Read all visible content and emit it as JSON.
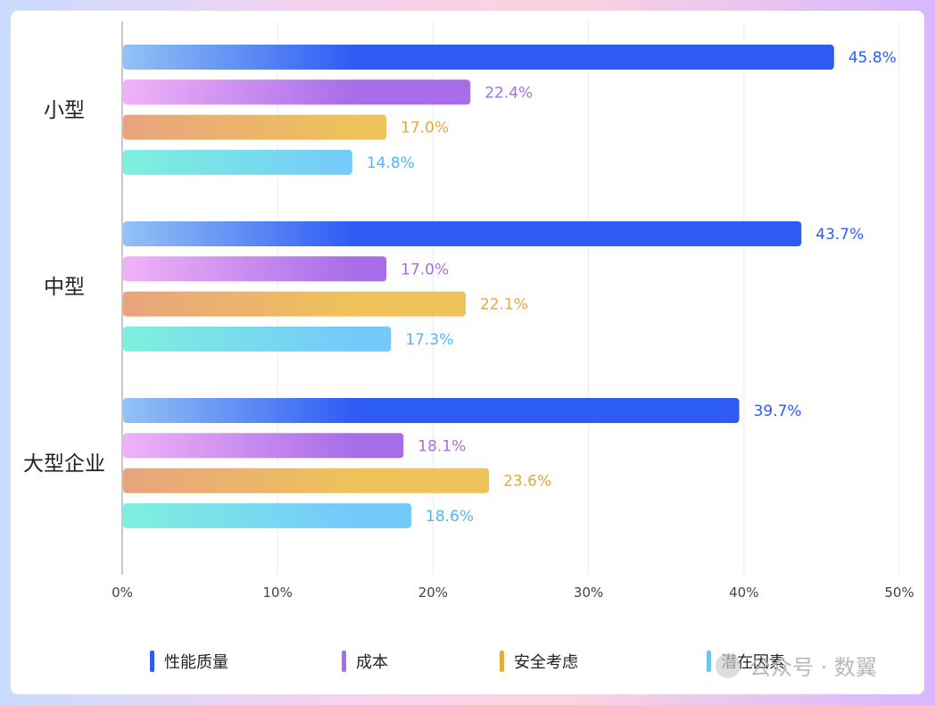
{
  "chart_data": {
    "type": "bar",
    "orientation": "horizontal",
    "categories": [
      "小型",
      "中型",
      "大型企业"
    ],
    "series": [
      {
        "name": "性能质量",
        "values": [
          45.8,
          43.7,
          39.7
        ],
        "color": "#2f5bf5",
        "color_start": "#93c3f5"
      },
      {
        "name": "成本",
        "values": [
          22.4,
          17.0,
          18.1
        ],
        "color": "#a76de8",
        "color_start": "#f0b2f7"
      },
      {
        "name": "安全考虑",
        "values": [
          17.0,
          22.1,
          23.6
        ],
        "color": "#efc25a",
        "color_start": "#e8a47e",
        "label_color": "#e1a93a"
      },
      {
        "name": "潜在因素",
        "values": [
          14.8,
          17.3,
          18.6
        ],
        "color": "#74c9fb",
        "color_start": "#7ef0de",
        "label_color": "#56b4ee"
      }
    ],
    "value_labels": [
      [
        "45.8%",
        "43.7%",
        "39.7%"
      ],
      [
        "22.4%",
        "17.0%",
        "18.1%"
      ],
      [
        "17.0%",
        "22.1%",
        "23.6%"
      ],
      [
        "14.8%",
        "17.3%",
        "18.6%"
      ]
    ],
    "xlim": [
      0,
      50
    ],
    "xticks": [
      "0%",
      "10%",
      "20%",
      "30%",
      "40%",
      "50%"
    ],
    "grid": true,
    "legend_position": "bottom"
  },
  "watermark": "公众号 · 数翼"
}
